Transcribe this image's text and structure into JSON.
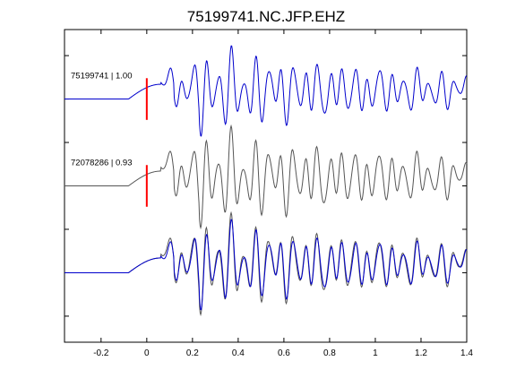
{
  "chart_data": {
    "type": "line",
    "title": "75199741.NC.JFP.EHZ",
    "xlim": [
      -0.36,
      1.4
    ],
    "x_ticks": [
      -0.2,
      0,
      0.2,
      0.4,
      0.6,
      0.8,
      1.0,
      1.2,
      1.4
    ],
    "x_tick_labels": [
      "-0.2",
      "0",
      "0.2",
      "0.4",
      "0.6",
      "0.8",
      "1",
      "1.2",
      "1.4"
    ],
    "ylim": [
      -0.3,
      3.3
    ],
    "grid": false,
    "pick_time": 0,
    "pick_color": "#ff0000",
    "colors": {
      "master": "#0000cc",
      "correlated": "#555555"
    },
    "traces": [
      {
        "label": "75199741 | 1.00",
        "event_id": "75199741",
        "cc": "1.00",
        "offset": 2.5,
        "color": "#0000cc",
        "seed": 1,
        "pick": true
      },
      {
        "label": "72078286 | 0.93",
        "event_id": "72078286",
        "cc": "0.93",
        "offset": 1.5,
        "color": "#555555",
        "seed": 2,
        "pick": true
      }
    ],
    "overlay": {
      "offset": 0.5,
      "series": [
        {
          "color": "#555555",
          "seed": 2
        },
        {
          "color": "#0000cc",
          "seed": 1
        }
      ]
    }
  }
}
